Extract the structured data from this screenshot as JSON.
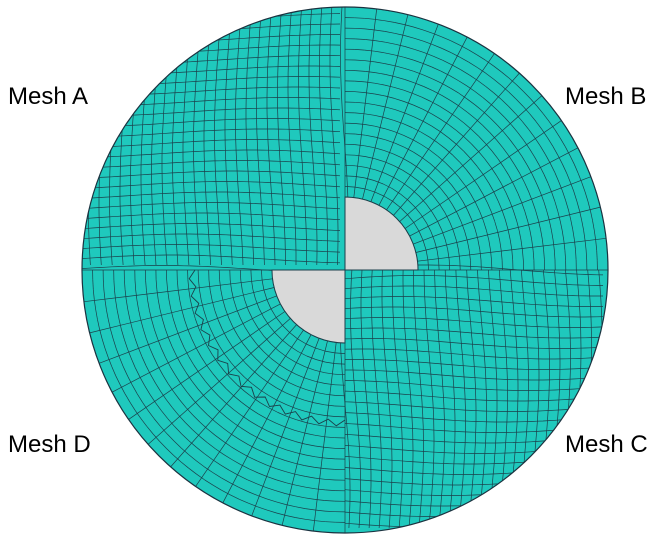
{
  "labels": {
    "mesh_a": "Mesh A",
    "mesh_b": "Mesh B",
    "mesh_c": "Mesh C",
    "mesh_d": "Mesh D"
  },
  "colors": {
    "mesh_fill": "#1fc9bd",
    "mesh_line": "#1b3f4a",
    "hole_fill": "#d9d9d9",
    "outline": "#1b3340"
  }
}
